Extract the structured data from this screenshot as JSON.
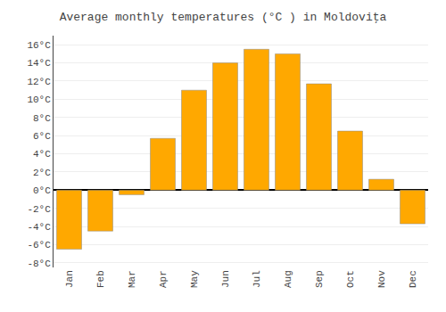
{
  "chart_data": {
    "type": "bar",
    "title": "Average monthly temperatures (°C ) in Moldoviţa",
    "categories": [
      "Jan",
      "Feb",
      "Mar",
      "Apr",
      "May",
      "Jun",
      "Jul",
      "Aug",
      "Sep",
      "Oct",
      "Nov",
      "Dec"
    ],
    "values": [
      -6.5,
      -4.5,
      -0.5,
      5.7,
      11.0,
      14.0,
      15.5,
      15.0,
      11.7,
      6.5,
      1.2,
      -3.7
    ],
    "color": "#FFA800",
    "ylim": [
      -8.5,
      17.0
    ],
    "yticks": [
      {
        "value": -8,
        "label": "-8°C"
      },
      {
        "value": -6,
        "label": "-6°C"
      },
      {
        "value": -4,
        "label": "-4°C"
      },
      {
        "value": -2,
        "label": "-2°C"
      },
      {
        "value": 0,
        "label": "0°C"
      },
      {
        "value": 2,
        "label": "2°C"
      },
      {
        "value": 4,
        "label": "4°C"
      },
      {
        "value": 6,
        "label": "6°C"
      },
      {
        "value": 8,
        "label": "8°C"
      },
      {
        "value": 10,
        "label": "10°C"
      },
      {
        "value": 12,
        "label": "12°C"
      },
      {
        "value": 14,
        "label": "14°C"
      },
      {
        "value": 16,
        "label": "16°C"
      }
    ],
    "grid": true
  }
}
